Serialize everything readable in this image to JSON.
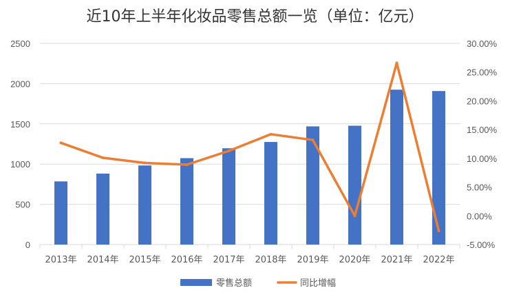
{
  "chart_data": {
    "type": "bar",
    "title": "近10年上半年化妆品零售总额一览（单位：亿元）",
    "categories": [
      "2013年",
      "2014年",
      "2015年",
      "2016年",
      "2017年",
      "2018年",
      "2019年",
      "2020年",
      "2021年",
      "2022年"
    ],
    "series": [
      {
        "name": "零售总额",
        "type": "bar",
        "axis": "left",
        "color": "#4472C4",
        "values": [
          785,
          882,
          983,
          1074,
          1197,
          1275,
          1469,
          1477,
          1925,
          1908
        ]
      },
      {
        "name": "同比增幅",
        "type": "line",
        "axis": "right",
        "color": "#ED7D31",
        "values": [
          12.7,
          10.1,
          9.2,
          8.9,
          11.3,
          14.2,
          13.2,
          0.0,
          26.6,
          -2.6
        ]
      }
    ],
    "left_axis": {
      "min": 0,
      "max": 2500,
      "ticks": [
        0,
        500,
        1000,
        1500,
        2000,
        2500
      ],
      "tick_labels": [
        "0",
        "500",
        "1000",
        "1500",
        "2000",
        "2500"
      ]
    },
    "right_axis": {
      "min": -5,
      "max": 30,
      "ticks": [
        -5,
        0,
        5,
        10,
        15,
        20,
        25,
        30
      ],
      "tick_labels": [
        "-5.00%",
        "0.00%",
        "5.00%",
        "10.00%",
        "15.00%",
        "20.00%",
        "25.00%",
        "30.00%"
      ]
    },
    "grid": true,
    "legend": {
      "position": "bottom",
      "items": [
        "零售总额",
        "同比增幅"
      ]
    }
  }
}
